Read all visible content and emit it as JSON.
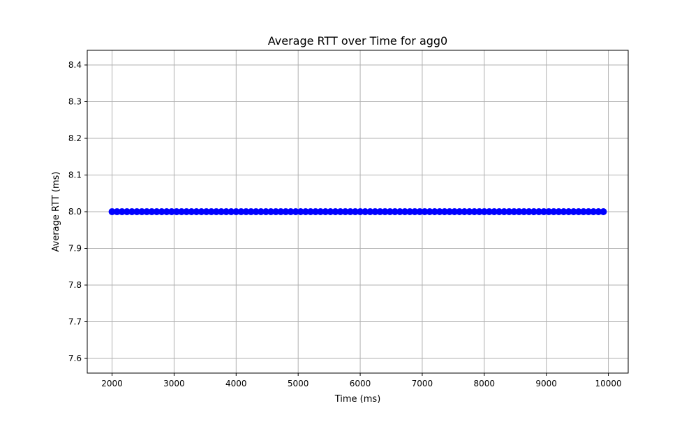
{
  "chart_data": {
    "type": "line",
    "title": "Average RTT over Time for agg0",
    "xlabel": "Time (ms)",
    "ylabel": "Average RTT (ms)",
    "xlim": [
      1600,
      10320
    ],
    "ylim": [
      7.56,
      8.44
    ],
    "xticks": [
      2000,
      3000,
      4000,
      5000,
      6000,
      7000,
      8000,
      9000,
      10000
    ],
    "yticks": [
      7.6,
      7.7,
      7.8,
      7.9,
      8.0,
      8.1,
      8.2,
      8.3,
      8.4
    ],
    "grid": true,
    "legend": "none",
    "series": [
      {
        "color": "#0000ff",
        "marker": "circle",
        "x_start": 2000,
        "x_end": 9920,
        "x_step": 80,
        "y": 8.0
      }
    ]
  }
}
